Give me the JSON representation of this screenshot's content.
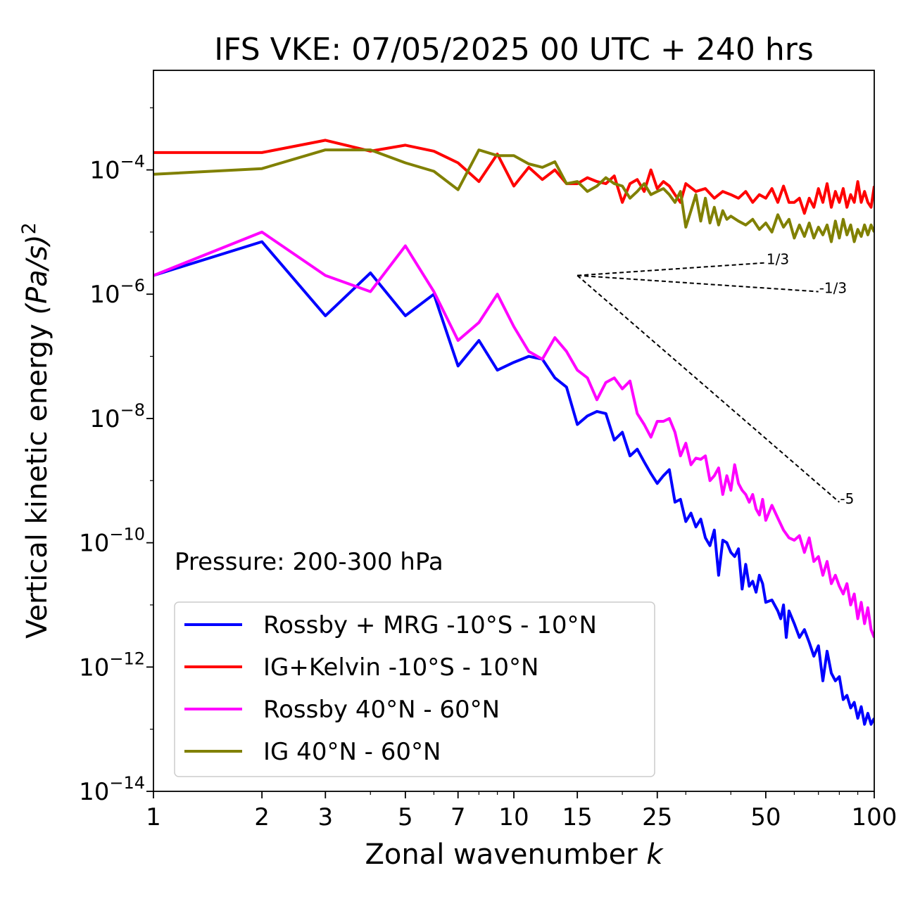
{
  "chart_data": {
    "type": "line",
    "title": "IFS VKE: 07/05/2025 00 UTC + 240 hrs",
    "xlabel": "Zonal wavenumber",
    "xlabel_var": "k",
    "ylabel": "Vertical kinetic energy",
    "ylabel_units": "(Pa/s)",
    "ylabel_exponent": "2",
    "xscale": "log",
    "yscale": "log",
    "xlim": [
      1,
      100
    ],
    "ylim": [
      1e-14,
      0.004
    ],
    "x_ticks": [
      1,
      2,
      3,
      5,
      7,
      10,
      15,
      25,
      50,
      100
    ],
    "x_tick_labels": [
      "1",
      "2",
      "3",
      "5",
      "7",
      "10",
      "15",
      "25",
      "50",
      "100"
    ],
    "y_ticks": [
      {
        "value": 0.0001,
        "base": "10",
        "exp": "−4"
      },
      {
        "value": 1e-06,
        "base": "10",
        "exp": "−6"
      },
      {
        "value": 1e-08,
        "base": "10",
        "exp": "−8"
      },
      {
        "value": 1e-10,
        "base": "10",
        "exp": "−10"
      },
      {
        "value": 1e-12,
        "base": "10",
        "exp": "−12"
      },
      {
        "value": 1e-14,
        "base": "10",
        "exp": "−14"
      }
    ],
    "annotation": "Pressure: 200-300 hPa",
    "legend_position": "lower-left",
    "grid": false,
    "series": [
      {
        "name": "Rossby + MRG -10°S - 10°N",
        "color": "#0000ff",
        "points": [
          [
            1,
            2e-06
          ],
          [
            2,
            7e-06
          ],
          [
            3,
            4.5e-07
          ],
          [
            4,
            2.2e-06
          ],
          [
            5,
            4.5e-07
          ],
          [
            6,
            1e-06
          ],
          [
            7,
            7e-08
          ],
          [
            8,
            1.8e-07
          ],
          [
            9,
            6e-08
          ],
          [
            10,
            8e-08
          ],
          [
            11,
            1e-07
          ],
          [
            12,
            9e-08
          ],
          [
            13,
            4.5e-08
          ],
          [
            14,
            3.2e-08
          ],
          [
            15,
            8e-09
          ],
          [
            16,
            1.1e-08
          ],
          [
            17,
            1.3e-08
          ],
          [
            18,
            1.2e-08
          ],
          [
            19,
            4.5e-09
          ],
          [
            20,
            6e-09
          ],
          [
            21,
            2.5e-09
          ],
          [
            22,
            3.2e-09
          ],
          [
            23,
            2e-09
          ],
          [
            24,
            1.3e-09
          ],
          [
            25,
            9e-10
          ],
          [
            26,
            1.2e-09
          ],
          [
            27,
            1.5e-09
          ],
          [
            28,
            4.5e-10
          ],
          [
            29,
            5e-10
          ],
          [
            30,
            2.2e-10
          ],
          [
            31,
            3e-10
          ],
          [
            32,
            1.8e-10
          ],
          [
            33,
            2.4e-10
          ],
          [
            34,
            1.2e-10
          ],
          [
            35,
            9e-11
          ],
          [
            36,
            1.6e-10
          ],
          [
            37,
            3e-11
          ],
          [
            38,
            1.1e-10
          ],
          [
            39,
            1e-10
          ],
          [
            40,
            7e-11
          ],
          [
            41,
            6e-11
          ],
          [
            42,
            8e-11
          ],
          [
            43,
            1.8e-11
          ],
          [
            44,
            4.5e-11
          ],
          [
            45,
            2e-11
          ],
          [
            46,
            2.4e-11
          ],
          [
            47,
            1.6e-11
          ],
          [
            48,
            3e-11
          ],
          [
            49,
            2.2e-11
          ],
          [
            50,
            1.1e-11
          ],
          [
            52,
            1.2e-11
          ],
          [
            54,
            8e-12
          ],
          [
            55,
            6e-12
          ],
          [
            56,
            1e-11
          ],
          [
            57,
            3e-12
          ],
          [
            58,
            8e-12
          ],
          [
            60,
            5e-12
          ],
          [
            62,
            3e-12
          ],
          [
            64,
            4e-12
          ],
          [
            66,
            2.5e-12
          ],
          [
            68,
            1.5e-12
          ],
          [
            70,
            2.2e-12
          ],
          [
            72,
            6e-13
          ],
          [
            74,
            1.8e-12
          ],
          [
            76,
            8e-13
          ],
          [
            78,
            6e-13
          ],
          [
            80,
            7e-13
          ],
          [
            82,
            3e-13
          ],
          [
            84,
            3.5e-13
          ],
          [
            86,
            2.2e-13
          ],
          [
            88,
            2.7e-13
          ],
          [
            90,
            1.5e-13
          ],
          [
            92,
            2.3e-13
          ],
          [
            94,
            1.2e-13
          ],
          [
            96,
            1.8e-13
          ],
          [
            98,
            1.2e-13
          ],
          [
            100,
            1.5e-13
          ]
        ]
      },
      {
        "name": "IG+Kelvin -10°S - 10°N",
        "color": "#ff0000",
        "points": [
          [
            1,
            0.00019
          ],
          [
            2,
            0.00019
          ],
          [
            3,
            0.0003
          ],
          [
            4,
            0.0002
          ],
          [
            5,
            0.00025
          ],
          [
            6,
            0.0002
          ],
          [
            7,
            0.00013
          ],
          [
            8,
            6.5e-05
          ],
          [
            9,
            0.00018
          ],
          [
            10,
            5.5e-05
          ],
          [
            11,
            0.00011
          ],
          [
            12,
            7e-05
          ],
          [
            13,
            0.0001
          ],
          [
            14,
            6e-05
          ],
          [
            15,
            6e-05
          ],
          [
            16,
            7.5e-05
          ],
          [
            17,
            6.5e-05
          ],
          [
            18,
            6e-05
          ],
          [
            19,
            8e-05
          ],
          [
            20,
            3e-05
          ],
          [
            21,
            6e-05
          ],
          [
            22,
            7e-05
          ],
          [
            23,
            4.5e-05
          ],
          [
            24,
            0.0001
          ],
          [
            25,
            5e-05
          ],
          [
            26,
            6.5e-05
          ],
          [
            27,
            5.5e-05
          ],
          [
            28,
            4e-05
          ],
          [
            29,
            3e-05
          ],
          [
            30,
            6e-05
          ],
          [
            32,
            4.5e-05
          ],
          [
            34,
            5e-05
          ],
          [
            36,
            3.5e-05
          ],
          [
            38,
            4.5e-05
          ],
          [
            40,
            4e-05
          ],
          [
            42,
            3.5e-05
          ],
          [
            44,
            4.5e-05
          ],
          [
            46,
            3e-05
          ],
          [
            48,
            4e-05
          ],
          [
            50,
            3.5e-05
          ],
          [
            52,
            5e-05
          ],
          [
            54,
            3e-05
          ],
          [
            56,
            5.5e-05
          ],
          [
            58,
            3e-05
          ],
          [
            60,
            3e-05
          ],
          [
            62,
            3.5e-05
          ],
          [
            64,
            2e-05
          ],
          [
            66,
            3.5e-05
          ],
          [
            68,
            2.5e-05
          ],
          [
            70,
            5e-05
          ],
          [
            72,
            3e-05
          ],
          [
            74,
            6e-05
          ],
          [
            76,
            2.5e-05
          ],
          [
            78,
            4.5e-05
          ],
          [
            80,
            3e-05
          ],
          [
            82,
            5e-05
          ],
          [
            84,
            2.5e-05
          ],
          [
            86,
            4e-05
          ],
          [
            88,
            3e-05
          ],
          [
            90,
            6.5e-05
          ],
          [
            92,
            3e-05
          ],
          [
            94,
            4.5e-05
          ],
          [
            96,
            3e-05
          ],
          [
            98,
            2.5e-05
          ],
          [
            100,
            5.5e-05
          ]
        ]
      },
      {
        "name": "Rossby 40°N - 60°N",
        "color": "#ff00ff",
        "points": [
          [
            1,
            2e-06
          ],
          [
            2,
            1e-05
          ],
          [
            3,
            2e-06
          ],
          [
            4,
            1.1e-06
          ],
          [
            5,
            6e-06
          ],
          [
            6,
            1.1e-06
          ],
          [
            7,
            1.8e-07
          ],
          [
            8,
            3.5e-07
          ],
          [
            9,
            1e-06
          ],
          [
            10,
            3e-07
          ],
          [
            11,
            1.2e-07
          ],
          [
            12,
            9e-08
          ],
          [
            13,
            2e-07
          ],
          [
            14,
            1.2e-07
          ],
          [
            15,
            6e-08
          ],
          [
            16,
            4.5e-08
          ],
          [
            17,
            2e-08
          ],
          [
            18,
            3.8e-08
          ],
          [
            19,
            4.5e-08
          ],
          [
            20,
            3e-08
          ],
          [
            21,
            4e-08
          ],
          [
            22,
            1.2e-08
          ],
          [
            23,
            8e-09
          ],
          [
            24,
            5e-09
          ],
          [
            25,
            9e-09
          ],
          [
            26,
            9e-09
          ],
          [
            27,
            1e-08
          ],
          [
            28,
            6e-09
          ],
          [
            29,
            2.5e-09
          ],
          [
            30,
            4e-09
          ],
          [
            31,
            1.8e-09
          ],
          [
            32,
            2.3e-09
          ],
          [
            33,
            2.2e-09
          ],
          [
            34,
            2.5e-09
          ],
          [
            35,
            1e-09
          ],
          [
            36,
            1.2e-09
          ],
          [
            37,
            1.6e-09
          ],
          [
            38,
            6e-10
          ],
          [
            39,
            1.2e-09
          ],
          [
            40,
            7e-10
          ],
          [
            41,
            1.8e-09
          ],
          [
            42,
            9e-10
          ],
          [
            43,
            7e-10
          ],
          [
            44,
            6e-10
          ],
          [
            45,
            4.5e-10
          ],
          [
            46,
            6e-10
          ],
          [
            47,
            3.5e-10
          ],
          [
            48,
            2.8e-10
          ],
          [
            49,
            5e-10
          ],
          [
            50,
            2.3e-10
          ],
          [
            52,
            4e-10
          ],
          [
            54,
            2.5e-10
          ],
          [
            56,
            1.6e-10
          ],
          [
            58,
            1.2e-10
          ],
          [
            60,
            1.1e-10
          ],
          [
            62,
            1.3e-10
          ],
          [
            64,
            7e-11
          ],
          [
            66,
            1.2e-10
          ],
          [
            68,
            5e-11
          ],
          [
            70,
            6e-11
          ],
          [
            72,
            3e-11
          ],
          [
            74,
            5e-11
          ],
          [
            76,
            2.2e-11
          ],
          [
            78,
            3e-11
          ],
          [
            80,
            2e-11
          ],
          [
            82,
            1.5e-11
          ],
          [
            84,
            2.2e-11
          ],
          [
            86,
            1e-11
          ],
          [
            88,
            1.5e-11
          ],
          [
            90,
            6e-12
          ],
          [
            92,
            1.1e-11
          ],
          [
            94,
            5e-12
          ],
          [
            96,
            9e-12
          ],
          [
            98,
            4e-12
          ],
          [
            100,
            3e-12
          ]
        ]
      },
      {
        "name": "IG 40°N - 60°N",
        "color": "#808000",
        "points": [
          [
            1,
            8.5e-05
          ],
          [
            2,
            0.000105
          ],
          [
            3,
            0.00021
          ],
          [
            4,
            0.00021
          ],
          [
            5,
            0.00013
          ],
          [
            6,
            9.5e-05
          ],
          [
            7,
            4.8e-05
          ],
          [
            8,
            0.00021
          ],
          [
            9,
            0.00017
          ],
          [
            10,
            0.00017
          ],
          [
            11,
            0.000125
          ],
          [
            12,
            0.00011
          ],
          [
            13,
            0.000135
          ],
          [
            14,
            6e-05
          ],
          [
            15,
            6.5e-05
          ],
          [
            16,
            4.5e-05
          ],
          [
            17,
            5.5e-05
          ],
          [
            18,
            7.5e-05
          ],
          [
            19,
            6e-05
          ],
          [
            20,
            5.5e-05
          ],
          [
            21,
            3.5e-05
          ],
          [
            22,
            4.5e-05
          ],
          [
            23,
            6e-05
          ],
          [
            24,
            4e-05
          ],
          [
            25,
            4.5e-05
          ],
          [
            26,
            5e-05
          ],
          [
            27,
            4e-05
          ],
          [
            28,
            3e-05
          ],
          [
            29,
            4.5e-05
          ],
          [
            30,
            1.2e-05
          ],
          [
            31,
            2.2e-05
          ],
          [
            32,
            4e-05
          ],
          [
            33,
            1.5e-05
          ],
          [
            34,
            3.5e-05
          ],
          [
            35,
            1.4e-05
          ],
          [
            36,
            2.5e-05
          ],
          [
            37,
            1.3e-05
          ],
          [
            38,
            2.2e-05
          ],
          [
            39,
            1.6e-05
          ],
          [
            40,
            1.8e-05
          ],
          [
            42,
            1.5e-05
          ],
          [
            44,
            1.3e-05
          ],
          [
            46,
            1.6e-05
          ],
          [
            48,
            1.1e-05
          ],
          [
            50,
            1.4e-05
          ],
          [
            52,
            1e-05
          ],
          [
            54,
            1.9e-05
          ],
          [
            56,
            1.2e-05
          ],
          [
            58,
            1.6e-05
          ],
          [
            60,
            8e-06
          ],
          [
            62,
            1.3e-05
          ],
          [
            64,
            8.5e-06
          ],
          [
            66,
            1.4e-05
          ],
          [
            68,
            8e-06
          ],
          [
            70,
            1.2e-05
          ],
          [
            72,
            9e-06
          ],
          [
            74,
            1.3e-05
          ],
          [
            76,
            7e-06
          ],
          [
            78,
            1.5e-05
          ],
          [
            80,
            8e-06
          ],
          [
            82,
            1.6e-05
          ],
          [
            84,
            9e-06
          ],
          [
            86,
            1.3e-05
          ],
          [
            88,
            7e-06
          ],
          [
            90,
            1.1e-05
          ],
          [
            92,
            8.5e-06
          ],
          [
            94,
            1.3e-05
          ],
          [
            96,
            9e-06
          ],
          [
            98,
            1.3e-05
          ],
          [
            100,
            1e-05
          ]
        ]
      }
    ],
    "reference_slopes": [
      {
        "label": "1/3",
        "from": [
          15,
          2e-06
        ],
        "to": [
          50,
          3.2e-06
        ]
      },
      {
        "label": "-1/3",
        "from": [
          15,
          2e-06
        ],
        "to": [
          70,
          1.1e-06
        ]
      },
      {
        "label": "-5",
        "from": [
          15,
          2e-06
        ],
        "to": [
          80,
          4.5e-10
        ]
      }
    ]
  }
}
